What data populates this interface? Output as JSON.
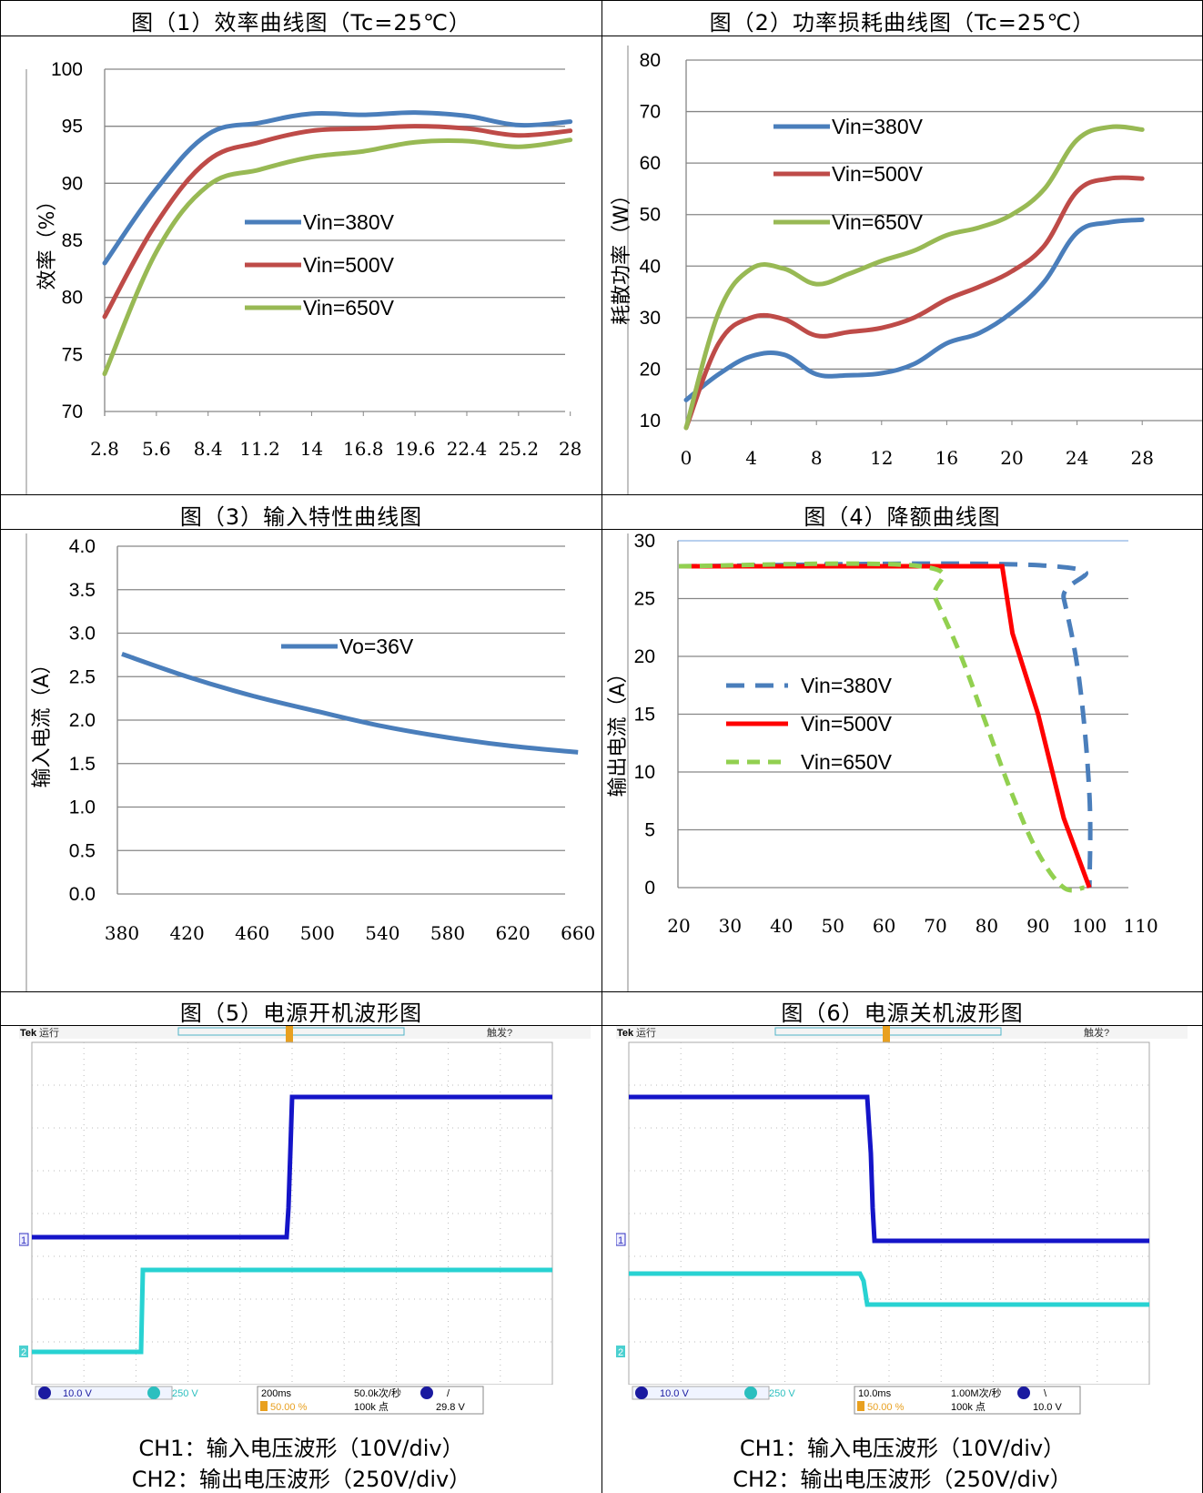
{
  "colors": {
    "blue": "#4A7EBB",
    "red": "#BE4B48",
    "green": "#98B954",
    "derate_red": "#FF0000",
    "derate_green": "#92D050",
    "grid": "#868686",
    "scope_ch1": "#1414C8",
    "scope_ch2": "#28D2D2"
  },
  "panels": {
    "p1_title": "图（1）效率曲线图（Tc=25℃）",
    "p2_title": "图（2）功率损耗曲线图（Tc=25℃）",
    "p3_title": "图（3）输入特性曲线图",
    "p4_title": "图（4）降额曲线图",
    "p5_title": "图（5）电源开机波形图",
    "p6_title": "图（6）电源关机波形图",
    "p5_caption_1": "CH1：输入电压波形（10V/div）",
    "p5_caption_2": "CH2：输出电压波形（250V/div）",
    "p6_caption_1": "CH1：输入电压波形（10V/div）",
    "p6_caption_2": "CH2：输出电压波形（250V/div）"
  },
  "chart_data": [
    {
      "type": "line",
      "ylabel": "效率（%）",
      "xlabel": "",
      "ylim": [
        70,
        100
      ],
      "yticks": [
        "70",
        "75",
        "80",
        "85",
        "90",
        "95",
        "100"
      ],
      "xticks": [
        "2.8",
        "5.6",
        "8.4",
        "11.2",
        "14",
        "16.8",
        "19.6",
        "22.4",
        "25.2",
        "28"
      ],
      "x": [
        2.8,
        5.6,
        8.4,
        11.2,
        14,
        16.8,
        19.6,
        22.4,
        25.2,
        28
      ],
      "series": [
        {
          "name": "Vin=380V",
          "values": [
            83,
            89.5,
            94.3,
            95.3,
            96.1,
            96.0,
            96.2,
            95.9,
            95.1,
            95.4
          ]
        },
        {
          "name": "Vin=500V",
          "values": [
            78.3,
            86.5,
            92.0,
            93.6,
            94.6,
            94.8,
            95.0,
            94.8,
            94.2,
            94.6
          ]
        },
        {
          "name": "Vin=650V",
          "values": [
            73.3,
            84.0,
            89.8,
            91.2,
            92.3,
            92.8,
            93.6,
            93.7,
            93.2,
            93.8
          ]
        }
      ],
      "legend": "center"
    },
    {
      "type": "line",
      "ylabel": "耗散功率（W）",
      "xlabel": "",
      "ylim": [
        10,
        80
      ],
      "yticks": [
        "10",
        "20",
        "30",
        "40",
        "50",
        "60",
        "70",
        "80"
      ],
      "xticks": [
        "0",
        "4",
        "8",
        "12",
        "16",
        "20",
        "24",
        "28"
      ],
      "x": [
        0,
        2,
        4,
        6,
        8,
        10,
        12,
        14,
        16,
        18,
        20,
        22,
        24,
        26,
        28
      ],
      "series": [
        {
          "name": "Vin=380V",
          "values": [
            14,
            19,
            22.5,
            22.8,
            19,
            18.8,
            19.2,
            21,
            25,
            27,
            31,
            37,
            46.5,
            48.5,
            49
          ]
        },
        {
          "name": "Vin=500V",
          "values": [
            8.6,
            25,
            30,
            29.7,
            26.5,
            27.2,
            28,
            30,
            33.5,
            36,
            39,
            44,
            54.5,
            57,
            57
          ]
        },
        {
          "name": "Vin=650V",
          "values": [
            8.6,
            31,
            39.5,
            39.5,
            36.5,
            38.5,
            41,
            43,
            46,
            47.5,
            50,
            55,
            64.5,
            67,
            66.5
          ]
        }
      ],
      "legend": "upper-left"
    },
    {
      "type": "line",
      "ylabel": "输入电流（A）",
      "xlabel": "",
      "ylim": [
        0,
        4.0
      ],
      "yticks": [
        "0.0",
        "0.5",
        "1.0",
        "1.5",
        "2.0",
        "2.5",
        "3.0",
        "3.5",
        "4.0"
      ],
      "xticks": [
        "380",
        "420",
        "460",
        "500",
        "540",
        "580",
        "620",
        "660"
      ],
      "x": [
        380,
        420,
        460,
        500,
        540,
        580,
        620,
        660
      ],
      "series": [
        {
          "name": "Vo=36V",
          "values": [
            2.76,
            2.5,
            2.28,
            2.1,
            1.93,
            1.8,
            1.7,
            1.63
          ]
        }
      ],
      "legend": "top-center"
    },
    {
      "type": "line",
      "ylabel": "输出电流（A）",
      "xlabel": "",
      "ylim": [
        0,
        30
      ],
      "yticks": [
        "0",
        "5",
        "10",
        "15",
        "20",
        "25",
        "30"
      ],
      "xticks": [
        "20",
        "30",
        "40",
        "50",
        "60",
        "70",
        "80",
        "90",
        "100",
        "110"
      ],
      "series": [
        {
          "name": "Vin=380V",
          "style": "dashed",
          "x": [
            20,
            93,
            95,
            98,
            100,
            100
          ],
          "values": [
            27.8,
            27.8,
            25,
            18,
            8,
            0
          ]
        },
        {
          "name": "Vin=500V",
          "style": "solid",
          "x": [
            20,
            83,
            85,
            90,
            95,
            100
          ],
          "values": [
            27.8,
            27.8,
            22,
            15,
            6,
            0
          ]
        },
        {
          "name": "Vin=650V",
          "style": "dashed",
          "x": [
            20,
            67,
            70,
            75,
            80,
            85,
            90,
            95,
            99
          ],
          "values": [
            27.8,
            27.8,
            25,
            20,
            14,
            8,
            3,
            0,
            0
          ]
        }
      ],
      "legend": "left-center"
    }
  ],
  "scopes": {
    "on": {
      "brand": "Tek",
      "status": "运行",
      "trigger_status": "触发?",
      "ch1_scale": "10.0 V",
      "ch2_scale": "250 V",
      "timebase": "200ms",
      "sample_rate": "50.0k次/秒",
      "points": "100k 点",
      "trig_pos": "50.00 %",
      "trig_level": "29.8 V",
      "trig_slope": "/",
      "ch1_marker": "1",
      "ch2_marker": "2"
    },
    "off": {
      "brand": "Tek",
      "status": "运行",
      "trigger_status": "触发?",
      "ch1_scale": "10.0 V",
      "ch2_scale": "250 V",
      "timebase": "10.0ms",
      "sample_rate": "1.00M次/秒",
      "points": "100k 点",
      "trig_pos": "50.00 %",
      "trig_level": "10.0 V",
      "trig_slope": "\\",
      "ch1_marker": "1",
      "ch2_marker": "2"
    }
  }
}
